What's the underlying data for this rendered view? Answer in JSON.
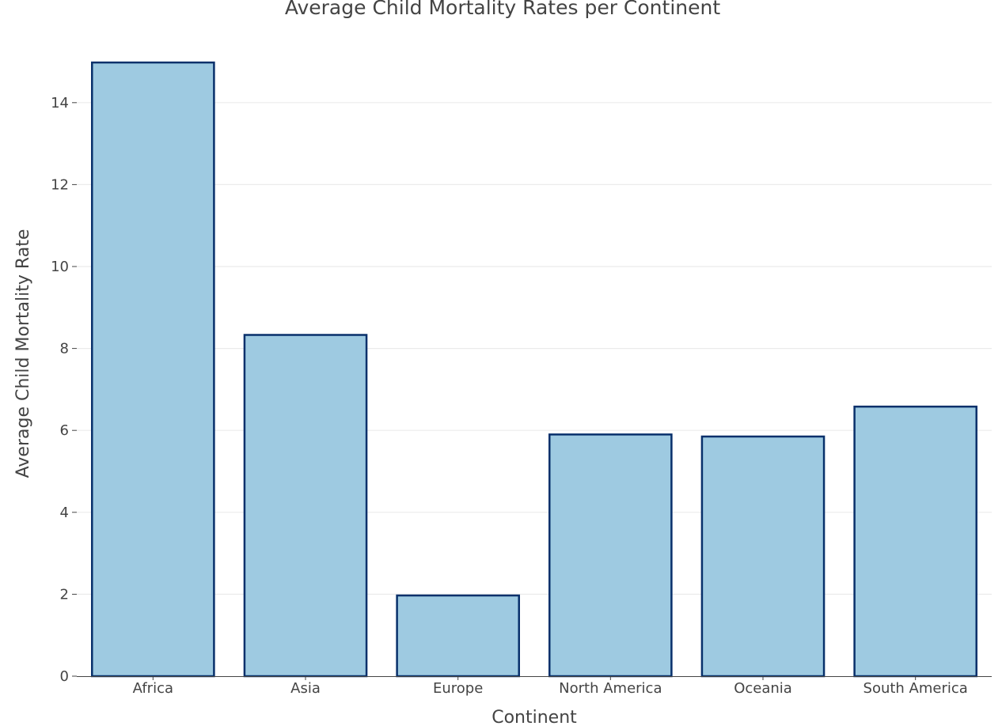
{
  "chart_data": {
    "type": "bar",
    "title": "Average Child Mortality Rates per Continent",
    "xlabel": "Continent",
    "ylabel": "Average Child Mortality Rate",
    "categories": [
      "Africa",
      "Asia",
      "Europe",
      "North America",
      "Oceania",
      "South America"
    ],
    "values": [
      14.98,
      8.33,
      1.97,
      5.9,
      5.85,
      6.58
    ],
    "ylim": [
      0,
      15
    ],
    "yticks": [
      0,
      2,
      4,
      6,
      8,
      10,
      12,
      14
    ],
    "grid": true,
    "bar_fill": "#9ecae1",
    "bar_outline": "#08306b"
  }
}
